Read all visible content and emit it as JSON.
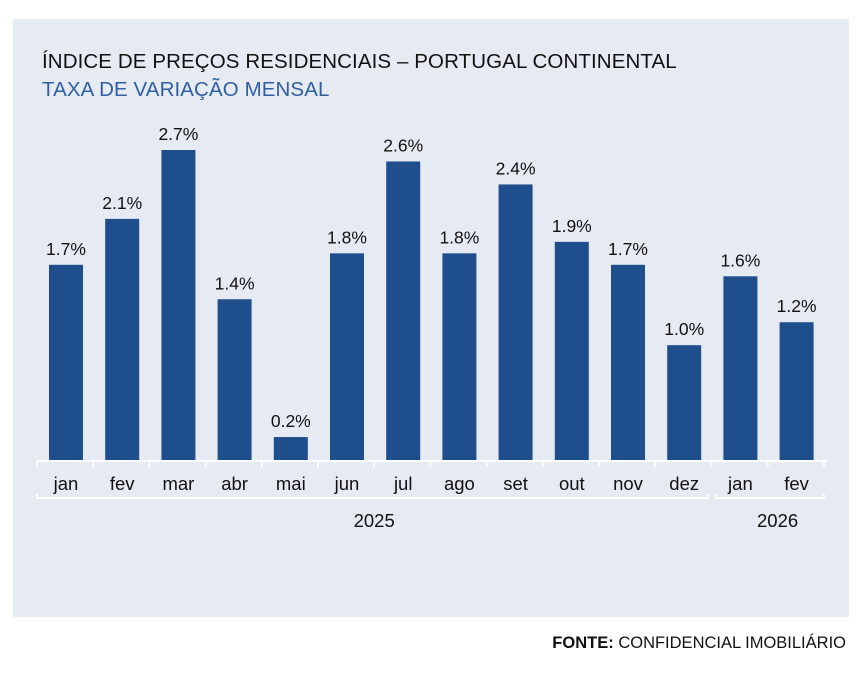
{
  "title": "ÍNDICE DE PREÇOS RESIDENCIAIS – PORTUGAL CONTINENTAL",
  "subtitle": "TAXA DE VARIAÇÃO MENSAL",
  "source": {
    "label": "FONTE:",
    "text": "CONFIDENCIAL IMOBILIÁRIO"
  },
  "colors": {
    "bar": "#1f4e8c",
    "panel": "#e6eaf3",
    "subtitle": "#2f5fa0",
    "text": "#111111"
  },
  "chart_data": {
    "type": "bar",
    "categories": [
      "jan",
      "fev",
      "mar",
      "abr",
      "mai",
      "jun",
      "jul",
      "ago",
      "set",
      "out",
      "nov",
      "dez",
      "jan",
      "fev"
    ],
    "values": [
      1.7,
      2.1,
      2.7,
      1.4,
      0.2,
      1.8,
      2.6,
      1.8,
      2.4,
      1.9,
      1.7,
      1.0,
      1.6,
      1.2
    ],
    "labels": [
      "1.7%",
      "2.1%",
      "2.7%",
      "1.4%",
      "0.2%",
      "1.8%",
      "2.6%",
      "1.8%",
      "2.4%",
      "1.9%",
      "1.7%",
      "1.0%",
      "1.6%",
      "1.2%"
    ],
    "groups": [
      {
        "label": "2025",
        "count": 12
      },
      {
        "label": "2026",
        "count": 2
      }
    ],
    "title": "ÍNDICE DE PREÇOS RESIDENCIAIS – PORTUGAL CONTINENTAL",
    "subtitle": "TAXA DE VARIAÇÃO MENSAL",
    "xlabel": "",
    "ylabel": "",
    "ylim": [
      0,
      2.7
    ],
    "grid": false,
    "legend": "none"
  }
}
